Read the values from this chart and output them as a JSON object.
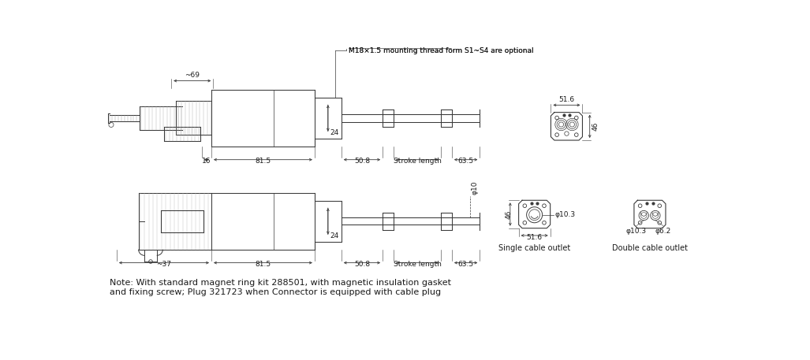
{
  "bg_color": "#ffffff",
  "line_color": "#3a3a3a",
  "dim_color": "#3a3a3a",
  "text_color": "#1a1a1a",
  "fig_width": 10.27,
  "fig_height": 4.57,
  "title_note": "M18×1.5 mounting thread form S1~S4 are optional",
  "note_text": "Note: With standard magnet ring kit 288501, with magnetic insulation gasket\nand fixing screw; Plug 321723 when Connector is equipped with cable plug",
  "dim_labels": {
    "top_69": "~69",
    "top_16": "16",
    "top_81p5": "81.5",
    "top_50p8": "50.8",
    "top_stroke": "Stroke length",
    "top_63p5": "63.5",
    "top_24": "24",
    "bot_37": "~37",
    "bot_81p5": "81.5",
    "bot_50p8": "50.8",
    "bot_stroke": "Stroke length",
    "bot_63p5": "63.5",
    "bot_24": "24",
    "bot_phi10": "φ10",
    "right_51p6_top": "51.6",
    "right_46_top": "46",
    "right_51p6_bot": "51.6",
    "right_46_bot": "46",
    "right_phi10p3": "φ10.3",
    "right_phi10p3b": "φ10.3",
    "right_phi6p2": "φ6.2",
    "single_label": "Single cable outlet",
    "double_label": "Double cable outlet"
  }
}
